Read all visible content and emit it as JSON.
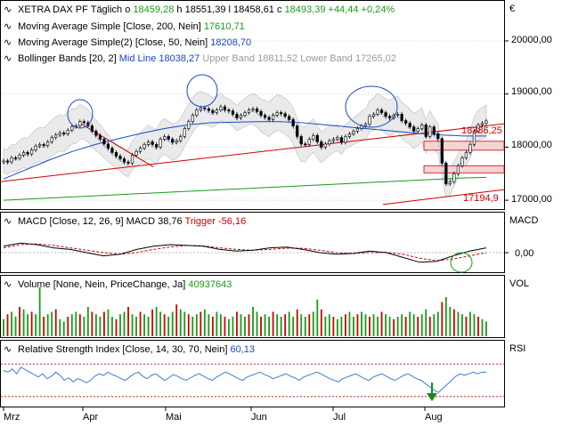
{
  "header": {
    "instrument": "XETRA DAX PF",
    "interval": "Täglich",
    "open_label": "o",
    "open": "18459,28",
    "high_label": "h",
    "high": "18551,39",
    "low_label": "l",
    "low": "18458,61",
    "close_label": "c",
    "close": "18493,39",
    "change": "+44,44",
    "change_pct": "+0,24%"
  },
  "price_legend": [
    {
      "label": "Moving Average Simple [Close, 200, Nein]",
      "value": "17610,71",
      "color": "#1a9a1a"
    },
    {
      "label": "Moving Average Simple(2) [Close, 50, Nein]",
      "value": "18208,70",
      "color": "#1a47c8"
    },
    {
      "label": "Bollinger Bands [20, 2]",
      "mid": "Mid Line 18038,27",
      "upper": "Upper Band 18811,52",
      "lower": "Lower Band 17265,02"
    }
  ],
  "currency_symbol": "€",
  "price_axis_labels": [
    "20000,00",
    "19000,00",
    "18000,00",
    "17000,00"
  ],
  "annotations": {
    "level_1": "18386,25",
    "level_2": "17194,9"
  },
  "macd": {
    "title": "MACD [Close, 12, 26, 9]",
    "macd_label": "MACD 38,76",
    "trigger_label": "Trigger -56,16",
    "axis_name": "MACD",
    "axis_label": "0,00"
  },
  "volume": {
    "title": "Volume [None, Nein, PriceChange, Ja]",
    "value": "40937643",
    "axis_name": "VOL"
  },
  "rsi": {
    "title": "Relative Strength Index [Close, 14, 30, 70, Nein]",
    "value": "60,13",
    "axis_name": "RSI"
  },
  "x_axis_labels": [
    "Mrz",
    "Apr",
    "Mai",
    "Jun",
    "Jul",
    "Aug"
  ],
  "colors": {
    "up": "#1a9a1a",
    "down": "#d10000",
    "ma200": "#1a9a1a",
    "ma50": "#1a47c8",
    "bollinger_fill": "#d9d9d9",
    "trendline": "#d10000",
    "macd": "#000000",
    "trigger": "#d10000",
    "rsi": "#3a7fd0",
    "frame": "#000000"
  },
  "chart_data": {
    "type": "candlestick",
    "x_range": [
      "Mrz",
      "Aug"
    ],
    "price_ylim": [
      16800,
      20400
    ],
    "close": [
      17740,
      17720,
      17800,
      17790,
      17850,
      17900,
      17870,
      17950,
      18020,
      18050,
      18030,
      18100,
      18180,
      18230,
      18270,
      18250,
      18320,
      18390,
      18400,
      18480,
      18460,
      18400,
      18300,
      18220,
      18150,
      18060,
      17980,
      17900,
      17830,
      17780,
      17720,
      17700,
      17850,
      17920,
      17980,
      18050,
      18100,
      18050,
      18000,
      18150,
      18200,
      18150,
      18090,
      18120,
      18200,
      18350,
      18480,
      18600,
      18700,
      18740,
      18720,
      18690,
      18650,
      18700,
      18760,
      18700,
      18680,
      18620,
      18550,
      18600,
      18650,
      18700,
      18720,
      18670,
      18600,
      18560,
      18520,
      18600,
      18650,
      18630,
      18580,
      18520,
      18400,
      18200,
      18060,
      18050,
      18150,
      18220,
      18100,
      18000,
      18060,
      18120,
      18150,
      18180,
      18090,
      18200,
      18250,
      18300,
      18350,
      18400,
      18430,
      18580,
      18620,
      18700,
      18650,
      18580,
      18550,
      18600,
      18620,
      18500,
      18450,
      18380,
      18300,
      18350,
      18420,
      18200,
      18380,
      18250,
      18160,
      17700,
      17310,
      17350,
      17500,
      17650,
      17800,
      17900,
      18050,
      18300,
      18420,
      18450,
      18493
    ],
    "ma200": [
      17180,
      17200,
      17220,
      17240,
      17260,
      17280,
      17300,
      17320,
      17340,
      17360,
      17380,
      17400,
      17420,
      17440,
      17460,
      17480,
      17500,
      17520,
      17540,
      17560,
      17580,
      17600,
      17610
    ],
    "ma50": [
      17400,
      17580,
      17760,
      17920,
      18050,
      18160,
      18260,
      18350,
      18420,
      18460,
      18470,
      18480,
      18480,
      18460,
      18420,
      18380,
      18340,
      18300,
      18260,
      18230,
      18210,
      18209
    ],
    "macd": [
      0.4,
      0.6,
      0.5,
      0.3,
      0.2,
      0.0,
      -0.2,
      -0.1,
      0.2,
      0.4,
      0.5,
      0.45,
      0.4,
      0.2,
      0.1,
      0.15,
      0.3,
      0.35,
      0.2,
      0.0,
      -0.1,
      -0.05,
      0.1,
      0.0,
      -0.3,
      -0.6,
      -0.55,
      -0.2,
      0.1,
      0.3
    ],
    "trigger": [
      0.3,
      0.5,
      0.55,
      0.45,
      0.3,
      0.15,
      0.0,
      -0.1,
      0.0,
      0.2,
      0.35,
      0.45,
      0.42,
      0.3,
      0.2,
      0.15,
      0.2,
      0.28,
      0.27,
      0.15,
      0.0,
      -0.05,
      0.0,
      0.02,
      -0.1,
      -0.35,
      -0.5,
      -0.4,
      -0.2,
      0.0
    ],
    "volume": [
      0.35,
      0.45,
      0.5,
      0.4,
      0.6,
      0.55,
      0.45,
      0.5,
      0.45,
      1.0,
      0.4,
      0.45,
      0.5,
      0.55,
      0.35,
      0.3,
      0.4,
      0.45,
      0.5,
      0.45,
      0.4,
      0.6,
      0.5,
      0.45,
      0.4,
      0.5,
      0.55,
      0.4,
      0.35,
      0.45,
      0.5,
      0.6,
      0.45,
      0.4,
      0.5,
      0.45,
      0.4,
      0.55,
      0.6,
      0.5,
      0.45,
      0.4,
      0.5,
      0.65,
      0.55,
      0.5,
      0.45,
      0.4,
      0.45,
      0.5,
      0.55,
      0.45,
      0.4,
      0.5,
      0.45,
      0.4,
      0.35,
      0.4,
      0.5,
      0.45,
      0.4,
      0.45,
      0.6,
      0.5,
      0.4,
      0.45,
      0.4,
      0.5,
      0.45,
      0.4,
      0.45,
      0.5,
      0.4,
      0.55,
      0.45,
      0.4,
      0.45,
      0.5,
      0.75,
      0.55,
      0.4,
      0.45,
      0.4,
      0.35,
      0.4,
      0.45,
      0.5,
      0.4,
      0.45,
      0.5,
      0.45,
      0.4,
      0.45,
      0.4,
      0.5,
      0.45,
      0.4,
      0.35,
      0.4,
      0.45,
      0.4,
      0.5,
      0.45,
      0.4,
      0.45,
      0.55,
      0.4,
      0.45,
      0.5,
      0.7,
      0.8,
      0.6,
      0.55,
      0.5,
      0.45,
      0.4,
      0.5,
      0.45,
      0.4,
      0.35,
      0.3
    ],
    "rsi": [
      62,
      60,
      64,
      58,
      66,
      63,
      60,
      57,
      54,
      58,
      52,
      55,
      60,
      56,
      50,
      53,
      48,
      52,
      50,
      47,
      50,
      55,
      58,
      56,
      60,
      57,
      55,
      52,
      50,
      54,
      58,
      60,
      55,
      52,
      56,
      58,
      54,
      50,
      53,
      57,
      55,
      52,
      50,
      53,
      56,
      58,
      55,
      52,
      50,
      54,
      57,
      60,
      58,
      55,
      52,
      50,
      54,
      56,
      58,
      60,
      57,
      55,
      52,
      54,
      56,
      58,
      55,
      53,
      50,
      54,
      56,
      58,
      60,
      58,
      55,
      52,
      50,
      48,
      52,
      54,
      56,
      58,
      55,
      52,
      50,
      54,
      56,
      58,
      55,
      52,
      50,
      53,
      56,
      58,
      55,
      52,
      50,
      46,
      42,
      38,
      35,
      40,
      45,
      50,
      55,
      58,
      56,
      58,
      60,
      58,
      60,
      60
    ]
  }
}
